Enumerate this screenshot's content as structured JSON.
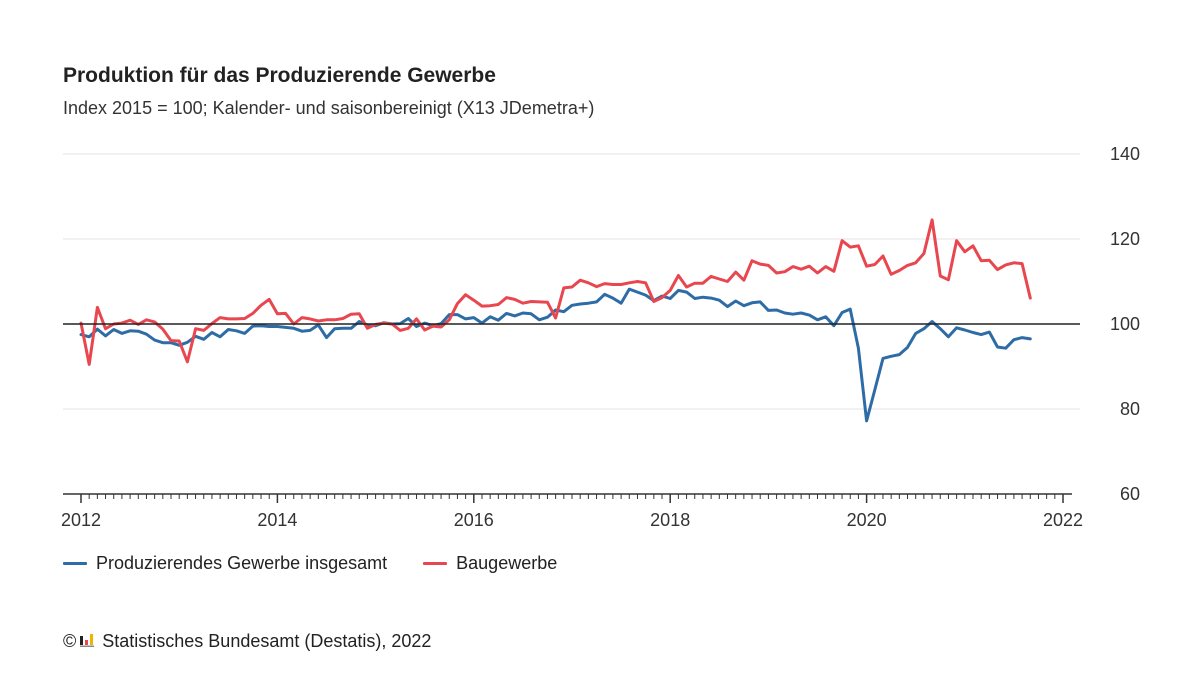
{
  "header": {
    "title": "Produktion für das Produzierende Gewerbe",
    "subtitle": "Index 2015 = 100; Kalender- und saisonbereinigt (X13 JDemetra+)"
  },
  "legend": {
    "items": [
      {
        "label": "Produzierendes Gewerbe insgesamt",
        "color": "#2e6ca6"
      },
      {
        "label": "Baugewerbe",
        "color": "#e8474f"
      }
    ]
  },
  "footer": {
    "copyright_symbol": "©",
    "source": "Statistisches Bundesamt (Destatis), 2022",
    "logo_icon": "destatis-logo-icon"
  },
  "chart_data": {
    "type": "line",
    "x_start": "2012-01",
    "x_frequency": "monthly",
    "xlim": [
      "2012-01",
      "2021-12"
    ],
    "ylim": [
      60,
      140
    ],
    "x_ticks": [
      "2012",
      "2014",
      "2016",
      "2018",
      "2020",
      "2022"
    ],
    "y_ticks": [
      "60",
      "80",
      "100",
      "120",
      "140"
    ],
    "reference_line": 100,
    "grid": "horizontal",
    "series": [
      {
        "name": "Produzierendes Gewerbe insgesamt",
        "color": "#2e6ca6",
        "values": [
          97.5,
          97.0,
          98.8,
          97.2,
          98.7,
          97.8,
          98.4,
          98.3,
          97.6,
          96.2,
          95.6,
          95.6,
          95.0,
          95.7,
          97.1,
          96.4,
          98.0,
          97.0,
          98.7,
          98.4,
          97.8,
          99.5,
          99.6,
          99.4,
          99.4,
          99.2,
          99.0,
          98.3,
          98.5,
          99.8,
          96.8,
          98.9,
          99.0,
          99.0,
          100.6,
          99.8,
          99.6,
          100.3,
          100.0,
          100.1,
          101.3,
          99.4,
          100.2,
          99.6,
          100.1,
          102.2,
          102.2,
          101.2,
          101.5,
          100.2,
          101.7,
          100.9,
          102.5,
          101.9,
          102.6,
          102.4,
          101.0,
          101.6,
          103.3,
          102.9,
          104.4,
          104.7,
          104.9,
          105.2,
          107.0,
          106.1,
          104.9,
          108.2,
          107.5,
          106.8,
          105.5,
          106.6,
          106.0,
          107.9,
          107.5,
          106.0,
          106.3,
          106.1,
          105.6,
          104.1,
          105.4,
          104.3,
          105.0,
          105.2,
          103.2,
          103.3,
          102.6,
          102.3,
          102.6,
          102.1,
          101.0,
          101.7,
          99.6,
          102.7,
          103.5,
          94.3,
          77.2,
          84.5,
          91.9,
          92.4,
          92.8,
          94.5,
          97.8,
          98.9,
          100.6,
          98.9,
          97.0,
          99.1,
          98.6,
          98.0,
          97.5,
          98.1,
          94.6,
          94.3,
          96.3,
          96.8,
          96.5
        ]
      },
      {
        "name": "Baugewerbe",
        "color": "#e8474f",
        "values": [
          100.2,
          90.5,
          103.9,
          98.9,
          100.0,
          100.2,
          100.9,
          99.9,
          101.0,
          100.5,
          98.8,
          96.1,
          96.0,
          91.1,
          98.9,
          98.5,
          100.1,
          101.5,
          101.2,
          101.2,
          101.3,
          102.5,
          104.4,
          105.8,
          102.4,
          102.5,
          100.0,
          101.5,
          101.2,
          100.7,
          101.0,
          101.0,
          101.3,
          102.3,
          102.4,
          99.0,
          99.9,
          100.2,
          100.0,
          98.5,
          99.0,
          101.2,
          98.6,
          99.5,
          99.3,
          101.0,
          104.8,
          106.9,
          105.6,
          104.2,
          104.3,
          104.6,
          106.2,
          105.8,
          104.9,
          105.3,
          105.2,
          105.1,
          101.4,
          108.5,
          108.7,
          110.3,
          109.7,
          108.8,
          109.5,
          109.3,
          109.3,
          109.7,
          110.0,
          109.7,
          105.3,
          106.2,
          107.9,
          111.4,
          108.7,
          109.6,
          109.6,
          111.2,
          110.6,
          110.0,
          112.2,
          110.3,
          114.9,
          114.1,
          113.8,
          112.0,
          112.3,
          113.5,
          112.9,
          113.6,
          112.0,
          113.5,
          112.4,
          119.6,
          118.1,
          118.4,
          113.6,
          114.0,
          116.0,
          111.7,
          112.6,
          113.8,
          114.4,
          116.6,
          124.5,
          111.3,
          110.4,
          119.6,
          117.0,
          118.4,
          114.9,
          115.0,
          112.8,
          113.9,
          114.4,
          114.2,
          106.1
        ]
      }
    ]
  }
}
